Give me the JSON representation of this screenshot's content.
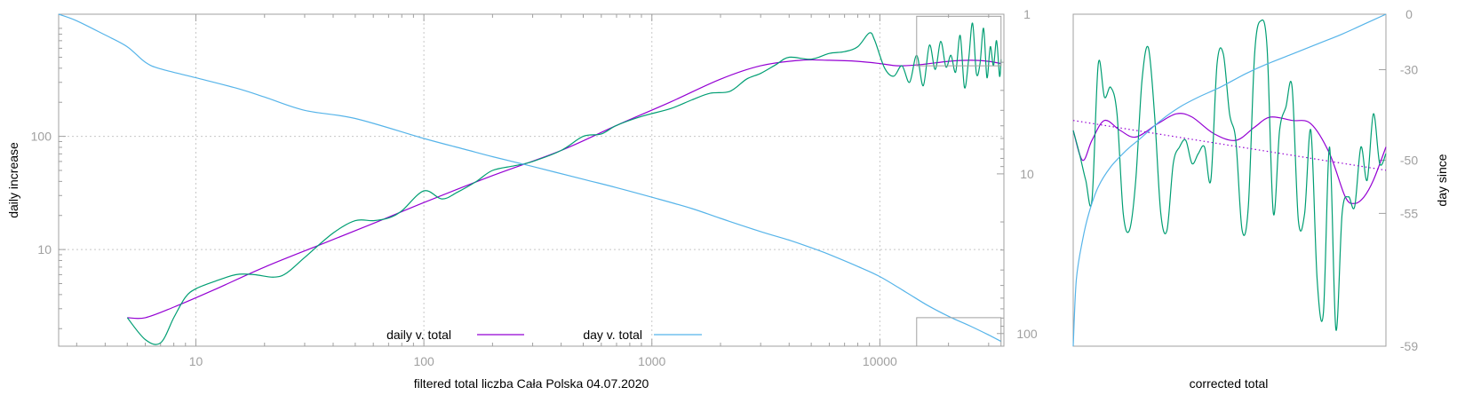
{
  "colors": {
    "daily_fit": "#9400d3",
    "daily_raw": "#009e73",
    "day_curve": "#56b4e9",
    "frame": "#a0a0a0",
    "grid": "#c8c8c8",
    "tick_text": "#a0a0a0"
  },
  "chart_data": [
    {
      "type": "line",
      "xlabel": "filtered total liczba Cała Polska 04.07.2020",
      "ylabel": "daily increase",
      "y2label": "",
      "x_scale": "log",
      "y_scale": "log",
      "y2_scale": "log",
      "xlim": [
        2.5,
        35000
      ],
      "ylim": [
        1.4,
        1200
      ],
      "y2lim": [
        1,
        120
      ],
      "x_ticks": [
        "10",
        "100",
        "1000",
        "10000"
      ],
      "x_tick_values": [
        10,
        100,
        1000,
        10000
      ],
      "y_ticks": [
        "10",
        "100"
      ],
      "y_tick_values": [
        10,
        100
      ],
      "y2_ticks": [
        "1",
        "10",
        "100"
      ],
      "y2_tick_values": [
        1,
        10,
        100
      ],
      "grid": true,
      "legend_position": "bottom-center",
      "legend": [
        {
          "label": "daily v. total",
          "series": "daily_fit"
        },
        {
          "label": "day v. total",
          "series": "day_curve"
        }
      ],
      "series": [
        {
          "name": "daily v. total",
          "key": "daily_fit",
          "axis": "y",
          "x": [
            5,
            6,
            8,
            12,
            20,
            35,
            60,
            100,
            200,
            400,
            700,
            1200,
            2000,
            3000,
            4500,
            6000,
            8000,
            10000,
            12000,
            15000,
            20000,
            25000,
            30000,
            34000
          ],
          "y": [
            2.5,
            2.5,
            3.1,
            4.4,
            7.0,
            11,
            17,
            26,
            45,
            75,
            125,
            200,
            320,
            420,
            470,
            470,
            460,
            440,
            420,
            430,
            460,
            470,
            460,
            440
          ]
        },
        {
          "key": "daily_raw",
          "axis": "y",
          "x": [
            5,
            6,
            7,
            8,
            9,
            10,
            12,
            15,
            18,
            22,
            25,
            30,
            40,
            50,
            60,
            70,
            80,
            100,
            120,
            140,
            170,
            200,
            250,
            300,
            400,
            500,
            600,
            700,
            900,
            1200,
            1500,
            1800,
            2200,
            2600,
            3000,
            3500,
            4000,
            5000,
            6000,
            7000,
            8000,
            9000,
            9500,
            10500,
            11500,
            12500,
            13500,
            14500,
            15500,
            16500,
            17500,
            18500,
            19500,
            20500,
            21500,
            22500,
            23500,
            24500,
            25500,
            26500,
            27500,
            28500,
            29500,
            30500,
            31500,
            32500,
            33500,
            34000
          ],
          "y": [
            2.5,
            1.6,
            1.5,
            2.5,
            3.8,
            4.5,
            5.2,
            6.0,
            6.0,
            5.7,
            6.2,
            8.5,
            14,
            18,
            18,
            19,
            22,
            33,
            28,
            32,
            40,
            50,
            55,
            60,
            75,
            100,
            105,
            125,
            150,
            175,
            210,
            240,
            250,
            320,
            360,
            430,
            500,
            480,
            540,
            560,
            620,
            820,
            700,
            400,
            340,
            420,
            300,
            520,
            280,
            640,
            390,
            690,
            410,
            520,
            370,
            780,
            270,
            470,
            1000,
            360,
            440,
            900,
            330,
            620,
            420,
            700,
            340,
            480
          ]
        },
        {
          "name": "day v. total",
          "key": "day_curve",
          "axis": "y2",
          "x": [
            2.5,
            3,
            4,
            5,
            6,
            7,
            10,
            15,
            20,
            30,
            50,
            100,
            150,
            200,
            300,
            500,
            700,
            1000,
            1500,
            2000,
            3000,
            4000,
            5000,
            6000,
            8000,
            10000,
            13000,
            16000,
            20000,
            25000,
            30000,
            34000
          ],
          "y2": [
            1,
            1.1,
            1.35,
            1.6,
            2.0,
            2.2,
            2.5,
            2.9,
            3.3,
            4.0,
            4.5,
            6.0,
            7.0,
            7.8,
            9.0,
            10.8,
            12.2,
            14.0,
            16.5,
            19.0,
            23.0,
            26.0,
            29.0,
            32.0,
            38.0,
            44.0,
            55.0,
            66.0,
            78.0,
            90.0,
            102.0,
            112.0
          ]
        }
      ],
      "inset_boxes": [
        {
          "x_range": [
            14500,
            34000
          ],
          "y_range": [
            420,
            1150
          ]
        },
        {
          "x_range": [
            14500,
            34000
          ],
          "y_range": [
            1.4,
            2.5
          ]
        }
      ]
    },
    {
      "type": "line",
      "xlabel": "corrected total",
      "ylabel": "",
      "y2label": "day since",
      "y2_ticks": [
        "0",
        "-30",
        "-50",
        "-55",
        "-59"
      ],
      "grid": false,
      "series": [
        {
          "key": "daily_fit",
          "x": [
            0,
            0.03,
            0.06,
            0.1,
            0.15,
            0.2,
            0.27,
            0.33,
            0.38,
            0.45,
            0.52,
            0.58,
            0.63,
            0.7,
            0.76,
            0.82,
            0.87,
            0.9,
            0.93,
            0.96,
            1
          ],
          "y": [
            0.35,
            0.44,
            0.38,
            0.32,
            0.35,
            0.37,
            0.33,
            0.3,
            0.31,
            0.36,
            0.38,
            0.34,
            0.31,
            0.32,
            0.33,
            0.42,
            0.55,
            0.57,
            0.55,
            0.5,
            0.4
          ]
        },
        {
          "key": "daily_raw",
          "x": [
            0,
            0.02,
            0.04,
            0.06,
            0.08,
            0.1,
            0.12,
            0.14,
            0.16,
            0.18,
            0.2,
            0.22,
            0.24,
            0.26,
            0.28,
            0.3,
            0.32,
            0.34,
            0.36,
            0.38,
            0.4,
            0.42,
            0.44,
            0.46,
            0.48,
            0.5,
            0.52,
            0.54,
            0.56,
            0.58,
            0.6,
            0.62,
            0.64,
            0.66,
            0.68,
            0.7,
            0.72,
            0.74,
            0.76,
            0.78,
            0.8,
            0.82,
            0.84,
            0.86,
            0.88,
            0.9,
            0.92,
            0.94,
            0.96,
            0.98,
            1
          ],
          "y": [
            0.35,
            0.42,
            0.5,
            0.56,
            0.15,
            0.25,
            0.22,
            0.3,
            0.6,
            0.65,
            0.5,
            0.2,
            0.1,
            0.3,
            0.6,
            0.65,
            0.45,
            0.4,
            0.38,
            0.45,
            0.42,
            0.4,
            0.5,
            0.15,
            0.12,
            0.3,
            0.38,
            0.65,
            0.58,
            0.12,
            0.02,
            0.1,
            0.6,
            0.35,
            0.28,
            0.22,
            0.62,
            0.6,
            0.35,
            0.8,
            0.9,
            0.4,
            0.95,
            0.6,
            0.55,
            0.58,
            0.4,
            0.5,
            0.3,
            0.45,
            0.42
          ]
        },
        {
          "key": "day_curve",
          "x": [
            0,
            0.01,
            0.03,
            0.05,
            0.08,
            0.12,
            0.17,
            0.22,
            0.28,
            0.34,
            0.4,
            0.47,
            0.55,
            0.62,
            0.7,
            0.78,
            0.86,
            0.93,
            1
          ],
          "y": [
            1.0,
            0.8,
            0.68,
            0.6,
            0.52,
            0.46,
            0.41,
            0.37,
            0.32,
            0.28,
            0.25,
            0.22,
            0.18,
            0.15,
            0.12,
            0.09,
            0.06,
            0.03,
            0.0
          ]
        },
        {
          "key": "daily_fit",
          "style": "dotted",
          "x": [
            0,
            1
          ],
          "y": [
            0.32,
            0.47
          ]
        }
      ]
    }
  ]
}
